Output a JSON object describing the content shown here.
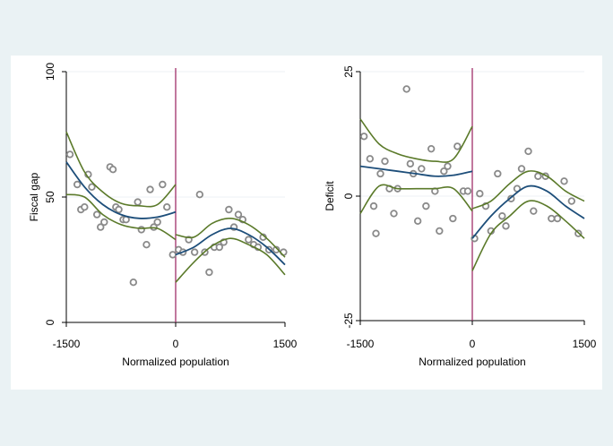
{
  "chart_data": [
    {
      "type": "scatter",
      "title": "",
      "xlabel": "Normalized population",
      "ylabel": "Fiscal gap",
      "xlim": [
        -1500,
        1500
      ],
      "ylim": [
        0,
        100
      ],
      "xticks": [
        -1500,
        0,
        1500
      ],
      "yticks": [
        0,
        50,
        100
      ],
      "xtick_labels": [
        "-1500",
        "0",
        "1500"
      ],
      "ytick_labels": [
        "0",
        "50",
        "100"
      ],
      "grid": "horizontal",
      "cutoff_x": 0,
      "colors": {
        "points": "#8a8a8a",
        "fit": "#1d4e7a",
        "ci": "#5b7a2a",
        "cutoff": "#a0306a",
        "grid": "#eef2f4"
      },
      "points": [
        [
          -1450,
          67
        ],
        [
          -1350,
          55
        ],
        [
          -1300,
          45
        ],
        [
          -1250,
          46
        ],
        [
          -1200,
          59
        ],
        [
          -1150,
          54
        ],
        [
          -1080,
          43
        ],
        [
          -1030,
          38
        ],
        [
          -980,
          40
        ],
        [
          -900,
          62
        ],
        [
          -860,
          61
        ],
        [
          -820,
          46
        ],
        [
          -780,
          45
        ],
        [
          -720,
          41
        ],
        [
          -680,
          41
        ],
        [
          -580,
          16
        ],
        [
          -520,
          48
        ],
        [
          -470,
          37
        ],
        [
          -400,
          31
        ],
        [
          -350,
          53
        ],
        [
          -300,
          38
        ],
        [
          -250,
          40
        ],
        [
          -180,
          55
        ],
        [
          -120,
          46
        ],
        [
          -40,
          27
        ],
        [
          40,
          29
        ],
        [
          100,
          28
        ],
        [
          180,
          33
        ],
        [
          260,
          28
        ],
        [
          330,
          51
        ],
        [
          400,
          28
        ],
        [
          460,
          20
        ],
        [
          530,
          30
        ],
        [
          600,
          30
        ],
        [
          660,
          32
        ],
        [
          730,
          45
        ],
        [
          800,
          38
        ],
        [
          860,
          43
        ],
        [
          920,
          41
        ],
        [
          1000,
          33
        ],
        [
          1070,
          31
        ],
        [
          1130,
          30
        ],
        [
          1200,
          34
        ],
        [
          1280,
          29
        ],
        [
          1380,
          29
        ],
        [
          1480,
          28
        ]
      ],
      "fit_left": [
        [
          -1500,
          64
        ],
        [
          -1250,
          54
        ],
        [
          -1000,
          47
        ],
        [
          -750,
          43
        ],
        [
          -500,
          41.5
        ],
        [
          -250,
          42
        ],
        [
          0,
          44
        ]
      ],
      "ci_left_upper": [
        [
          -1500,
          76
        ],
        [
          -1250,
          60
        ],
        [
          -1000,
          52
        ],
        [
          -750,
          47.5
        ],
        [
          -500,
          46.5
        ],
        [
          -250,
          47
        ],
        [
          0,
          55
        ]
      ],
      "ci_left_lower": [
        [
          -1500,
          51
        ],
        [
          -1250,
          50
        ],
        [
          -1000,
          43
        ],
        [
          -750,
          39
        ],
        [
          -500,
          37.5
        ],
        [
          -250,
          37.5
        ],
        [
          0,
          33
        ]
      ],
      "fit_right": [
        [
          0,
          27
        ],
        [
          250,
          30
        ],
        [
          500,
          35
        ],
        [
          750,
          37.5
        ],
        [
          1000,
          35
        ],
        [
          1250,
          30
        ],
        [
          1500,
          23
        ]
      ],
      "ci_right_upper": [
        [
          0,
          35
        ],
        [
          250,
          34
        ],
        [
          500,
          39.5
        ],
        [
          750,
          41.5
        ],
        [
          1000,
          39
        ],
        [
          1250,
          33.5
        ],
        [
          1500,
          26
        ]
      ],
      "ci_right_lower": [
        [
          0,
          16
        ],
        [
          250,
          24
        ],
        [
          500,
          30.5
        ],
        [
          750,
          33.5
        ],
        [
          1000,
          31
        ],
        [
          1250,
          27
        ],
        [
          1500,
          19
        ]
      ]
    },
    {
      "type": "scatter",
      "title": "",
      "xlabel": "Normalized population",
      "ylabel": "Deficit",
      "xlim": [
        -1500,
        1500
      ],
      "ylim": [
        -25,
        25
      ],
      "xticks": [
        -1500,
        0,
        1500
      ],
      "yticks": [
        -25,
        0,
        25
      ],
      "xtick_labels": [
        "-1500",
        "0",
        "1500"
      ],
      "ytick_labels": [
        "-25",
        "0",
        "25"
      ],
      "grid": "horizontal",
      "cutoff_x": 0,
      "colors": {
        "points": "#8a8a8a",
        "fit": "#1d4e7a",
        "ci": "#5b7a2a",
        "cutoff": "#a0306a",
        "grid": "#eef2f4"
      },
      "points": [
        [
          -1450,
          12
        ],
        [
          -1370,
          7.5
        ],
        [
          -1320,
          -2
        ],
        [
          -1290,
          -7.5
        ],
        [
          -1230,
          4.5
        ],
        [
          -1170,
          7
        ],
        [
          -1110,
          1.5
        ],
        [
          -1050,
          -3.5
        ],
        [
          -1000,
          1.5
        ],
        [
          -880,
          21.5
        ],
        [
          -830,
          6.5
        ],
        [
          -790,
          4.5
        ],
        [
          -730,
          -5
        ],
        [
          -680,
          5.5
        ],
        [
          -620,
          -2
        ],
        [
          -550,
          9.5
        ],
        [
          -500,
          1
        ],
        [
          -440,
          -7
        ],
        [
          -380,
          5
        ],
        [
          -330,
          6
        ],
        [
          -260,
          -4.5
        ],
        [
          -200,
          10
        ],
        [
          -120,
          1
        ],
        [
          -60,
          1
        ],
        [
          30,
          -8.5
        ],
        [
          100,
          0.5
        ],
        [
          180,
          -2
        ],
        [
          250,
          -7
        ],
        [
          340,
          4.5
        ],
        [
          400,
          -4
        ],
        [
          450,
          -6
        ],
        [
          520,
          -0.5
        ],
        [
          600,
          1.5
        ],
        [
          660,
          5.5
        ],
        [
          750,
          9
        ],
        [
          820,
          -3
        ],
        [
          880,
          4
        ],
        [
          980,
          4
        ],
        [
          1060,
          -4.5
        ],
        [
          1140,
          -4.5
        ],
        [
          1230,
          3
        ],
        [
          1330,
          -1
        ],
        [
          1420,
          -7.5
        ]
      ],
      "fit_left": [
        [
          -1500,
          6
        ],
        [
          -1250,
          5.5
        ],
        [
          -1000,
          5
        ],
        [
          -750,
          4.5
        ],
        [
          -500,
          4
        ],
        [
          -250,
          4.2
        ],
        [
          0,
          5
        ]
      ],
      "ci_left_upper": [
        [
          -1500,
          15.5
        ],
        [
          -1250,
          10.5
        ],
        [
          -1000,
          8.5
        ],
        [
          -750,
          7.5
        ],
        [
          -500,
          7
        ],
        [
          -250,
          7.5
        ],
        [
          0,
          14
        ]
      ],
      "ci_left_lower": [
        [
          -1500,
          -3.5
        ],
        [
          -1250,
          2
        ],
        [
          -1000,
          1.5
        ],
        [
          -750,
          1.5
        ],
        [
          -500,
          1.5
        ],
        [
          -250,
          1.5
        ],
        [
          0,
          -3
        ]
      ],
      "fit_right": [
        [
          0,
          -8.5
        ],
        [
          250,
          -4
        ],
        [
          500,
          -0.5
        ],
        [
          750,
          2
        ],
        [
          1000,
          1
        ],
        [
          1250,
          -2
        ],
        [
          1500,
          -4.5
        ]
      ],
      "ci_right_upper": [
        [
          0,
          -2.5
        ],
        [
          250,
          -1
        ],
        [
          500,
          2.5
        ],
        [
          750,
          5
        ],
        [
          1000,
          4
        ],
        [
          1250,
          1
        ],
        [
          1500,
          -1
        ]
      ],
      "ci_right_lower": [
        [
          0,
          -15
        ],
        [
          250,
          -7.5
        ],
        [
          500,
          -4
        ],
        [
          750,
          -1
        ],
        [
          1000,
          -2
        ],
        [
          1250,
          -5
        ],
        [
          1500,
          -8.5
        ]
      ]
    }
  ]
}
